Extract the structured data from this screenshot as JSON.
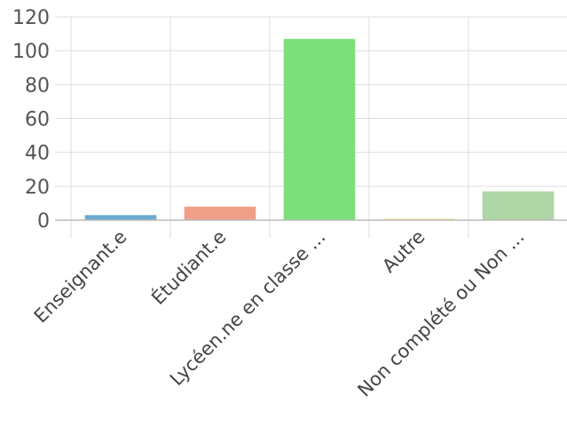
{
  "chart_data": {
    "type": "bar",
    "title": "",
    "xlabel": "",
    "ylabel": "",
    "ylim": [
      0,
      120
    ],
    "yticks": [
      0,
      20,
      40,
      60,
      80,
      100,
      120
    ],
    "grid": true,
    "categories": [
      "Enseignant.e",
      "Étudiant.e",
      "Lycéen.ne en classe ...",
      "Autre",
      "Non complété ou Non ..."
    ],
    "values": [
      3,
      8,
      107,
      1,
      17
    ],
    "colors": [
      "#6aaad2",
      "#f0a089",
      "#7be07b",
      "#f4e6a8",
      "#afd6a6"
    ]
  }
}
